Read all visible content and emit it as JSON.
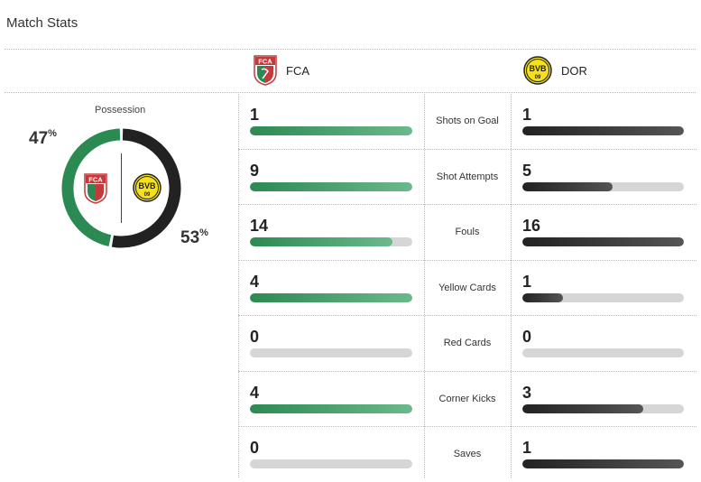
{
  "header": {
    "title": "Match Stats"
  },
  "teams": {
    "home": {
      "abbr": "FCA",
      "color": "#2b8a52"
    },
    "away": {
      "abbr": "DOR",
      "color": "#222222"
    }
  },
  "possession": {
    "label": "Possession",
    "home_pct": 47,
    "away_pct": 53
  },
  "stats": [
    {
      "category": "Shots on Goal",
      "home": 1,
      "away": 1,
      "home_fraction": 1.0,
      "away_fraction": 1.0
    },
    {
      "category": "Shot Attempts",
      "home": 9,
      "away": 5,
      "home_fraction": 1.0,
      "away_fraction": 0.556
    },
    {
      "category": "Fouls",
      "home": 14,
      "away": 16,
      "home_fraction": 0.875,
      "away_fraction": 1.0
    },
    {
      "category": "Yellow Cards",
      "home": 4,
      "away": 1,
      "home_fraction": 1.0,
      "away_fraction": 0.25
    },
    {
      "category": "Red Cards",
      "home": 0,
      "away": 0,
      "home_fraction": 0,
      "away_fraction": 0
    },
    {
      "category": "Corner Kicks",
      "home": 4,
      "away": 3,
      "home_fraction": 1.0,
      "away_fraction": 0.75
    },
    {
      "category": "Saves",
      "home": 0,
      "away": 1,
      "home_fraction": 0,
      "away_fraction": 1.0
    }
  ]
}
